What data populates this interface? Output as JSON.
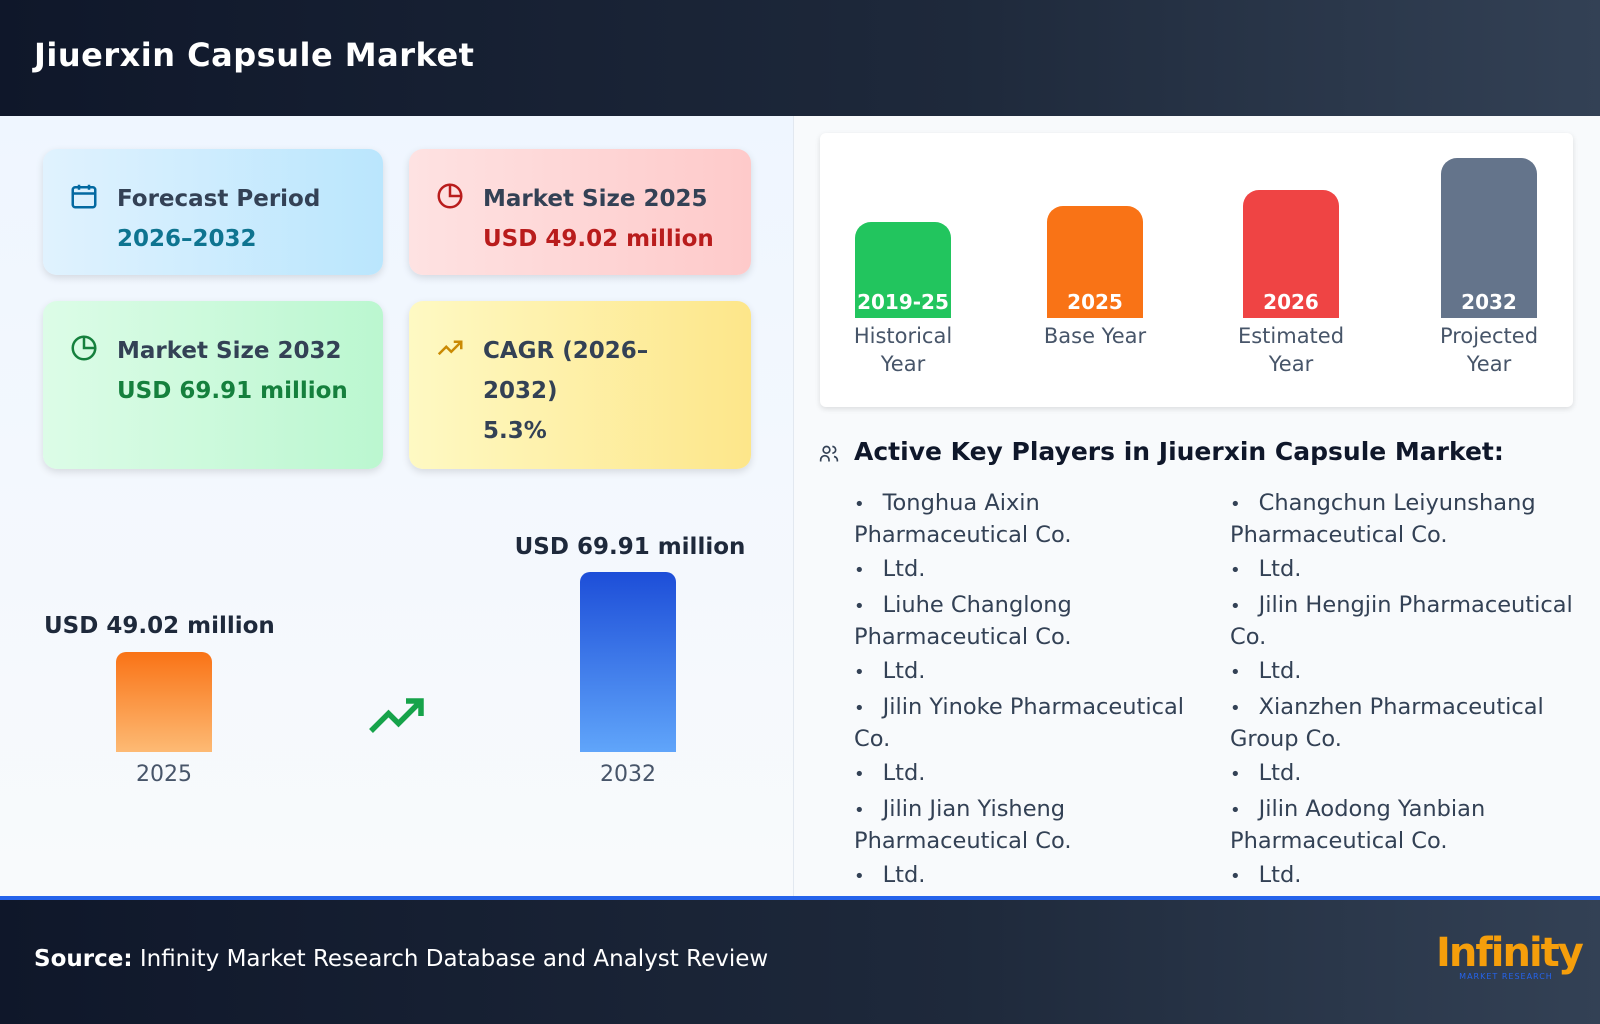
{
  "header": {
    "title": "Jiuerxin Capsule Market"
  },
  "cards": [
    {
      "label": "Forecast Period",
      "value": "2026–2032"
    },
    {
      "label": "Market Size 2025",
      "value": "USD 49.02 million"
    },
    {
      "label": "Market Size 2032",
      "value": "USD 69.91 million"
    },
    {
      "label": "CAGR (2026–2032)",
      "value": "5.3%"
    }
  ],
  "comparison": [
    {
      "label": "USD 49.02 million",
      "year": "2025"
    },
    {
      "label": "USD 69.91 million",
      "year": "2032"
    }
  ],
  "timeline": [
    {
      "year": "2019-25",
      "label": "Historical Year"
    },
    {
      "year": "2025",
      "label": "Base Year"
    },
    {
      "year": "2026",
      "label": "Estimated Year"
    },
    {
      "year": "2032",
      "label": "Projected Year"
    }
  ],
  "players": {
    "title": "Active Key Players in Jiuerxin Capsule Market:",
    "items": [
      "Tonghua Aixin Pharmaceutical Co.",
      "Ltd.",
      "Liuhe Changlong Pharmaceutical Co.",
      "Ltd.",
      "Jilin Yinoke Pharmaceutical Co.",
      "Ltd.",
      "Jilin Jian Yisheng Pharmaceutical Co.",
      "Ltd.",
      "Changchun Leiyunshang Pharmaceutical Co.",
      "Ltd.",
      "Jilin Hengjin Pharmaceutical Co.",
      "Ltd.",
      "Xianzhen Pharmaceutical Group Co.",
      "Ltd.",
      "Jilin Aodong Yanbian Pharmaceutical Co.",
      "Ltd."
    ]
  },
  "footer": {
    "source_label": "Source:",
    "source": "Infinity Market Research Database and Analyst Review",
    "logo": "Infinity",
    "logo_sub": "MARKET RESEARCH"
  }
}
